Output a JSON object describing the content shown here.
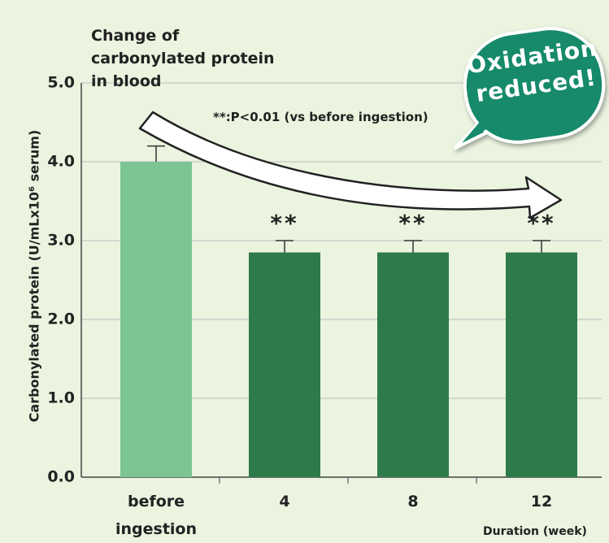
{
  "chart_data": {
    "type": "bar",
    "title": "Change of carbonylated protein in blood",
    "annotation": "**:P<0.01 (vs before ingestion)",
    "badge": "Oxidation reduced!",
    "y_label": "Carbonylated protein (U/mLx10⁶ serum)",
    "x_label": "Duration (week)",
    "categories": [
      "before ingestion",
      "4",
      "8",
      "12"
    ],
    "values": [
      4.0,
      2.85,
      2.85,
      2.85
    ],
    "errors": [
      0.2,
      0.15,
      0.15,
      0.15
    ],
    "significance": [
      null,
      "**",
      "**",
      "**"
    ],
    "colors": [
      "#7cc593",
      "#2f7a4b",
      "#2f7a4b",
      "#2f7a4b"
    ],
    "ylim": [
      0,
      5
    ],
    "yticks": [
      {
        "value": 0,
        "label": "0.0"
      },
      {
        "value": 1,
        "label": "1.0"
      },
      {
        "value": 2,
        "label": "2.0"
      },
      {
        "value": 3,
        "label": "3.0"
      },
      {
        "value": 4,
        "label": "4.0"
      },
      {
        "value": 5,
        "label": "5.0"
      }
    ],
    "grid": true
  }
}
